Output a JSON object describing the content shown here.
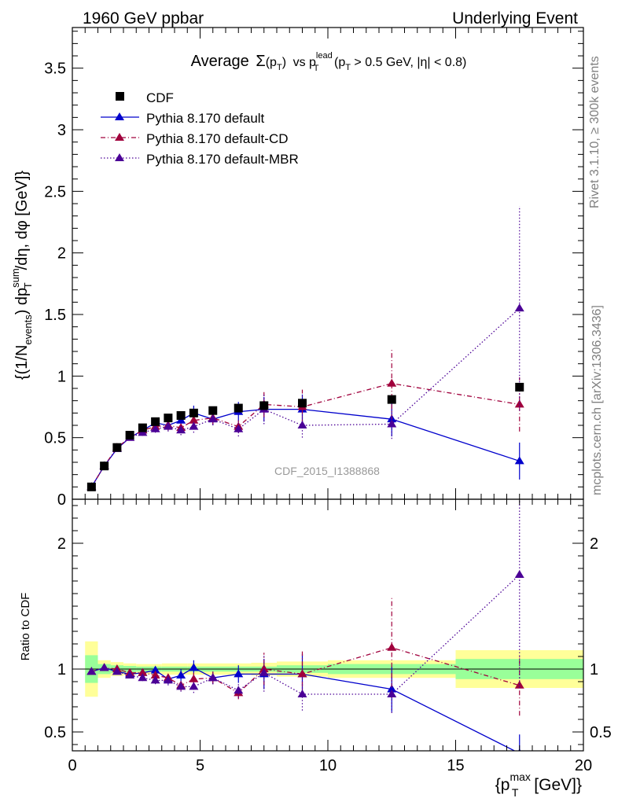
{
  "header": {
    "left": "1960 GeV ppbar",
    "right": "Underlying Event"
  },
  "side_labels": {
    "rivet": "Rivet 3.1.10, ≥ 300k events",
    "mcplots": "mcplots.cern.ch [arXiv:1306.3436]"
  },
  "watermark": "CDF_2015_I1388868",
  "chart_data": [
    {
      "type": "scatter",
      "title_parts": {
        "main": "Average",
        "sigma": "Σ",
        "pt": "(p",
        "pt_sub": "T",
        "pt_close": ")",
        "vs": "vs p",
        "lead_sup": "lead",
        "lead_sub": "T",
        "cut": "(p",
        "cut_sub": "T",
        "cut_rest": " > 0.5 GeV, |η| < 0.8)"
      },
      "ylabel_parts": {
        "a": "{(1/N",
        "a_sub": "events",
        "b": ") dp",
        "b_sup": "sum",
        "b_sub": "T",
        "c": "/dη, dφ [GeV]}"
      },
      "xlabel_parts": {
        "a": "{p",
        "a_sup": "max",
        "a_sub": "T",
        "b": " [GeV]}"
      },
      "xlim": [
        0,
        20
      ],
      "ylim": [
        0,
        3.83
      ],
      "x_ticks": [
        0,
        5,
        10,
        15,
        20
      ],
      "x_tick_labels": [
        "0",
        "5",
        "10",
        "15",
        "20"
      ],
      "y_ticks": [
        0,
        0.5,
        1,
        1.5,
        2,
        2.5,
        3,
        3.5
      ],
      "y_tick_labels": [
        "0",
        "0.5",
        "1",
        "1.5",
        "2",
        "2.5",
        "3",
        "3.5"
      ],
      "legend_position": "top-left",
      "series": [
        {
          "name": "CDF",
          "marker": "square",
          "color": "#000000",
          "x": [
            0.75,
            1.25,
            1.75,
            2.25,
            2.75,
            3.25,
            3.75,
            4.25,
            4.75,
            5.5,
            6.5,
            7.5,
            9.0,
            12.5,
            17.5
          ],
          "y": [
            0.1,
            0.27,
            0.42,
            0.52,
            0.58,
            0.63,
            0.66,
            0.68,
            0.7,
            0.72,
            0.74,
            0.76,
            0.78,
            0.81,
            0.91
          ]
        },
        {
          "name": "Pythia 8.170 default",
          "marker": "triangle",
          "line": "solid",
          "color": "#0000cc",
          "x": [
            0.75,
            1.25,
            1.75,
            2.25,
            2.75,
            3.25,
            3.75,
            4.25,
            4.75,
            5.5,
            6.5,
            7.5,
            9.0,
            12.5,
            17.5
          ],
          "y": [
            0.1,
            0.27,
            0.41,
            0.5,
            0.56,
            0.62,
            0.6,
            0.64,
            0.7,
            0.65,
            0.71,
            0.73,
            0.73,
            0.65,
            0.31
          ],
          "err": [
            0.005,
            0.01,
            0.015,
            0.02,
            0.025,
            0.03,
            0.04,
            0.05,
            0.06,
            0.05,
            0.08,
            0.1,
            0.12,
            0.14,
            0.15
          ]
        },
        {
          "name": "Pythia 8.170 default-CD",
          "marker": "triangle",
          "line": "dashdot",
          "color": "#a0003c",
          "x": [
            0.75,
            1.25,
            1.75,
            2.25,
            2.75,
            3.25,
            3.75,
            4.25,
            4.75,
            5.5,
            6.5,
            7.5,
            9.0,
            12.5,
            17.5
          ],
          "y": [
            0.1,
            0.27,
            0.42,
            0.5,
            0.56,
            0.59,
            0.6,
            0.58,
            0.64,
            0.66,
            0.59,
            0.77,
            0.75,
            0.94,
            0.77
          ],
          "err": [
            0.005,
            0.01,
            0.015,
            0.02,
            0.025,
            0.03,
            0.04,
            0.04,
            0.05,
            0.05,
            0.05,
            0.1,
            0.14,
            0.29,
            0.22
          ]
        },
        {
          "name": "Pythia 8.170 default-MBR",
          "marker": "triangle",
          "line": "dotted",
          "color": "#4b0096",
          "x": [
            0.75,
            1.25,
            1.75,
            2.25,
            2.75,
            3.25,
            3.75,
            4.25,
            4.75,
            5.5,
            6.5,
            7.5,
            9.0,
            12.5,
            17.5
          ],
          "y": [
            0.1,
            0.27,
            0.41,
            0.5,
            0.54,
            0.57,
            0.59,
            0.56,
            0.59,
            0.65,
            0.57,
            0.73,
            0.6,
            0.61,
            1.55
          ],
          "err": [
            0.005,
            0.01,
            0.015,
            0.02,
            0.025,
            0.03,
            0.04,
            0.04,
            0.05,
            0.05,
            0.06,
            0.12,
            0.1,
            0.12,
            0.83
          ]
        }
      ]
    },
    {
      "type": "scatter",
      "ylabel": "Ratio to CDF",
      "xlim": [
        0,
        20
      ],
      "ylim": [
        0.35,
        2.35
      ],
      "y_ticks": [
        0.5,
        1,
        2
      ],
      "y_tick_labels": [
        "0.5",
        "1",
        "2"
      ],
      "bands": {
        "color_inner": "#99ff99",
        "color_outer": "#ffff99",
        "x_edges": [
          0.5,
          1.0,
          1.5,
          2.0,
          2.5,
          3.0,
          3.5,
          4.0,
          4.5,
          5.0,
          6.0,
          7.0,
          8.0,
          10.0,
          15.0,
          20.0
        ],
        "inner": [
          0.11,
          0.04,
          0.03,
          0.025,
          0.02,
          0.02,
          0.02,
          0.02,
          0.02,
          0.02,
          0.02,
          0.02,
          0.03,
          0.04,
          0.08
        ],
        "outer": [
          0.22,
          0.07,
          0.055,
          0.045,
          0.04,
          0.04,
          0.045,
          0.045,
          0.045,
          0.045,
          0.045,
          0.05,
          0.06,
          0.07,
          0.15
        ]
      },
      "series": [
        {
          "name": "Pythia 8.170 default",
          "marker": "triangle",
          "line": "solid",
          "color": "#0000cc",
          "x": [
            0.75,
            1.25,
            1.75,
            2.25,
            2.75,
            3.25,
            3.75,
            4.25,
            4.75,
            5.5,
            6.5,
            7.5,
            9.0,
            12.5,
            17.5
          ],
          "y": [
            0.98,
            1.01,
            0.98,
            0.96,
            0.97,
            0.99,
            0.92,
            0.95,
            1.01,
            0.93,
            0.96,
            0.96,
            0.96,
            0.84,
            0.33
          ],
          "err": [
            0.01,
            0.015,
            0.02,
            0.02,
            0.025,
            0.03,
            0.04,
            0.05,
            0.06,
            0.05,
            0.07,
            0.12,
            0.16,
            0.18,
            0.15
          ]
        },
        {
          "name": "Pythia 8.170 default-CD",
          "marker": "triangle",
          "line": "dashdot",
          "color": "#a0003c",
          "x": [
            0.75,
            1.25,
            1.75,
            2.25,
            2.75,
            3.25,
            3.75,
            4.25,
            4.75,
            5.5,
            6.5,
            7.5,
            9.0,
            12.5,
            17.5
          ],
          "y": [
            0.98,
            1.01,
            1.0,
            0.97,
            0.97,
            0.95,
            0.93,
            0.87,
            0.92,
            0.93,
            0.81,
            1.0,
            0.96,
            1.17,
            0.87
          ],
          "err": [
            0.01,
            0.015,
            0.02,
            0.02,
            0.025,
            0.03,
            0.04,
            0.04,
            0.05,
            0.05,
            0.05,
            0.13,
            0.18,
            0.4,
            0.24
          ]
        },
        {
          "name": "Pythia 8.170 default-MBR",
          "marker": "triangle",
          "line": "dotted",
          "color": "#4b0096",
          "x": [
            0.75,
            1.25,
            1.75,
            2.25,
            2.75,
            3.25,
            3.75,
            4.25,
            4.75,
            5.5,
            6.5,
            7.5,
            9.0,
            12.5,
            17.5
          ],
          "y": [
            0.98,
            1.01,
            0.98,
            0.95,
            0.93,
            0.91,
            0.91,
            0.86,
            0.86,
            0.93,
            0.83,
            0.97,
            0.8,
            0.8,
            1.75
          ],
          "err": [
            0.01,
            0.015,
            0.02,
            0.02,
            0.025,
            0.03,
            0.04,
            0.04,
            0.05,
            0.05,
            0.06,
            0.15,
            0.13,
            0.15,
            0.9
          ]
        }
      ]
    }
  ]
}
